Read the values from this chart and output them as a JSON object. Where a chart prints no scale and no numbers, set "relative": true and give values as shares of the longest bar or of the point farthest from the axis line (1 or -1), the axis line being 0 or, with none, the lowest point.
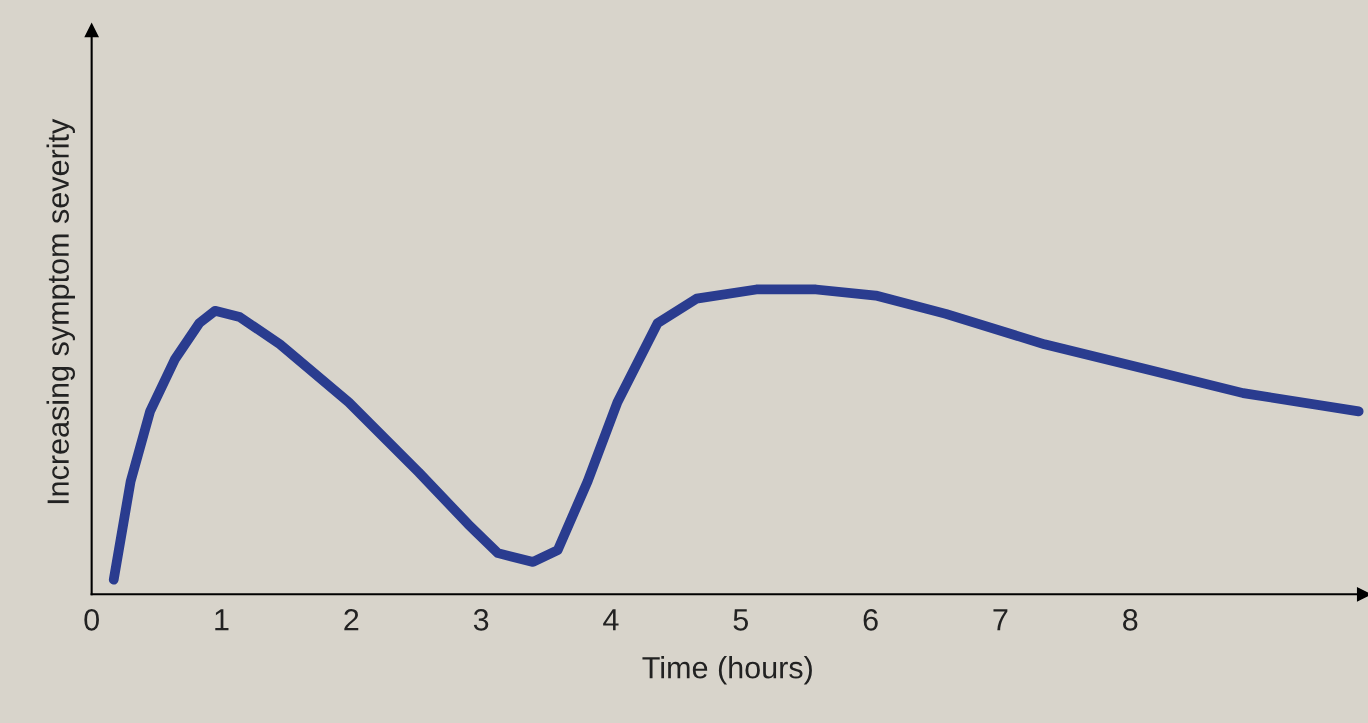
{
  "chart_data": {
    "type": "line",
    "relative": true,
    "xlabel": "Time (hours)",
    "ylabel": "Increasing symptom severity",
    "x": [
      0.17,
      0.3,
      0.45,
      0.64,
      0.83,
      0.95,
      1.14,
      1.45,
      1.98,
      2.52,
      2.9,
      3.13,
      3.4,
      3.59,
      3.82,
      4.05,
      4.36,
      4.66,
      5.12,
      5.58,
      6.04,
      6.58,
      7.34,
      8.11,
      8.87,
      9.76
    ],
    "series": [
      {
        "color": "#2a3c8f",
        "values": [
          0.048,
          0.37,
          0.6,
          0.77,
          0.89,
          0.93,
          0.91,
          0.82,
          0.63,
          0.4,
          0.23,
          0.135,
          0.106,
          0.145,
          0.37,
          0.63,
          0.89,
          0.97,
          1.0,
          1.0,
          0.98,
          0.92,
          0.82,
          0.74,
          0.66,
          0.6
        ]
      }
    ],
    "xlim": [
      0,
      9.8
    ],
    "xticks": [
      0,
      1,
      2,
      3,
      4,
      5,
      6,
      7,
      8
    ],
    "tick_labels": "x",
    "grid": false,
    "marker": "none",
    "line_style": "solid"
  }
}
